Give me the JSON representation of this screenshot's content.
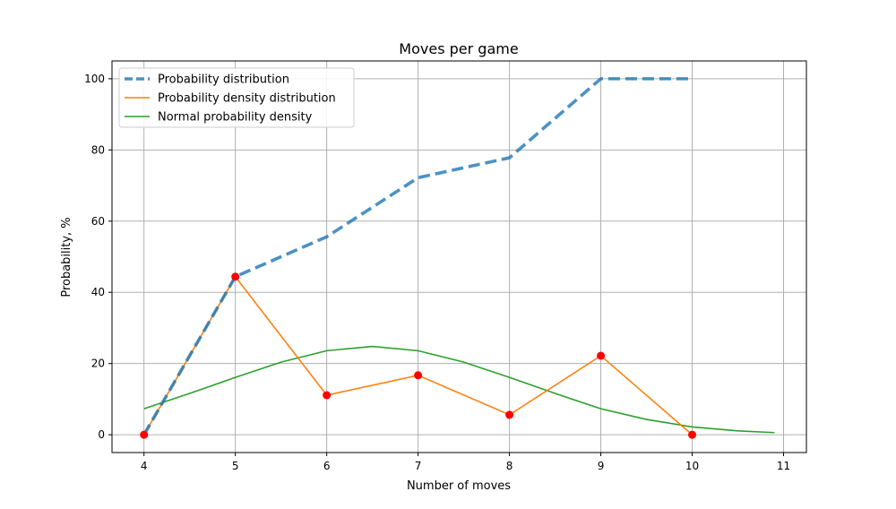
{
  "chart_data": {
    "type": "line",
    "title": "Moves per game",
    "xlabel": "Number of moves",
    "ylabel": "Probability, %",
    "xlim": [
      3.65,
      11.25
    ],
    "ylim": [
      -5,
      105
    ],
    "x_ticks": [
      4,
      5,
      6,
      7,
      8,
      9,
      10,
      11
    ],
    "y_ticks": [
      0,
      20,
      40,
      60,
      80,
      100
    ],
    "grid": true,
    "legend_position": "top-left",
    "series": [
      {
        "name": "Probability distribution",
        "style": "dashed",
        "color": "#1f77b4",
        "x": [
          4,
          5,
          6,
          7,
          8,
          9,
          10
        ],
        "y": [
          0,
          44.4,
          55.6,
          72.2,
          77.8,
          100,
          100
        ]
      },
      {
        "name": "Probability density distribution",
        "style": "solid",
        "color": "#ff7f0e",
        "markers": true,
        "marker_color": "#ff0000",
        "x": [
          4,
          5,
          6,
          7,
          8,
          9,
          10
        ],
        "y": [
          0,
          44.4,
          11.1,
          16.7,
          5.6,
          22.2,
          0
        ]
      },
      {
        "name": "Normal probability density",
        "style": "solid",
        "color": "#2ca02c",
        "x": [
          4,
          4.5,
          5,
          5.5,
          6,
          6.5,
          7,
          7.5,
          8,
          8.5,
          9,
          9.5,
          10,
          10.5,
          10.9
        ],
        "y": [
          7.3,
          11.6,
          16.1,
          20.4,
          23.6,
          24.8,
          23.6,
          20.4,
          16.1,
          11.6,
          7.3,
          4.3,
          2.2,
          1.1,
          0.6
        ]
      }
    ]
  }
}
